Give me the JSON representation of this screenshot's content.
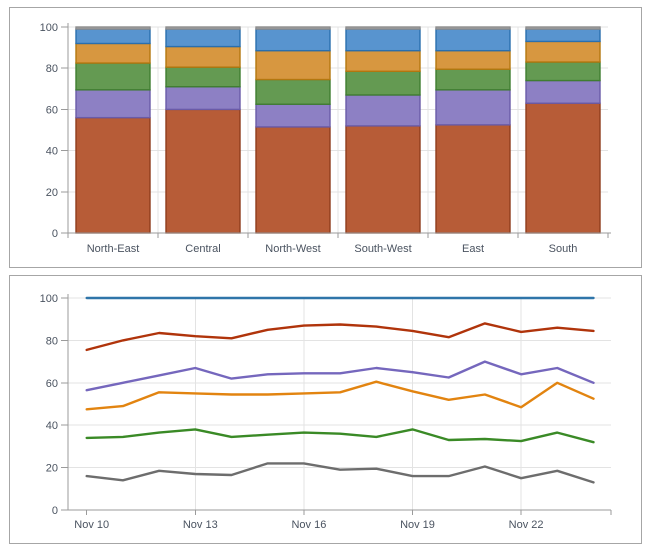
{
  "window": {
    "background": "#ffffff",
    "panel_border": "#a6a6a6"
  },
  "axis_style": {
    "label_color": "#4a5360",
    "axis_color": "#9b9b9b",
    "tick_color": "#9b9b9b",
    "grid_color": "#e3e3e3",
    "font_size": 11
  },
  "chart_data": [
    {
      "id": "regions-stacked-bar",
      "type": "bar",
      "stacked": true,
      "title": "",
      "xlabel": "",
      "ylabel": "",
      "categories": [
        "North-East",
        "Central",
        "North-West",
        "South-West",
        "East",
        "South"
      ],
      "ylim": [
        0,
        100
      ],
      "yticks": [
        0,
        20,
        40,
        60,
        80,
        100
      ],
      "grid": true,
      "legend": "none",
      "series": [
        {
          "name": "rust",
          "fill": "#b75c37",
          "stroke": "#8f3c1c",
          "values": [
            56,
            60,
            51.5,
            52,
            52.5,
            63
          ]
        },
        {
          "name": "purple",
          "fill": "#8d80c4",
          "stroke": "#6a5ba8",
          "values": [
            13.5,
            11,
            11,
            15,
            17,
            11
          ]
        },
        {
          "name": "green",
          "fill": "#649a52",
          "stroke": "#3f7d31",
          "values": [
            13,
            9.5,
            12,
            11.5,
            10,
            9
          ]
        },
        {
          "name": "orange",
          "fill": "#d79740",
          "stroke": "#b4770f",
          "values": [
            9.5,
            10,
            14,
            10,
            9,
            10
          ]
        },
        {
          "name": "blue",
          "fill": "#5894cf",
          "stroke": "#2a6fae",
          "values": [
            7,
            8.5,
            10.5,
            10.5,
            10.5,
            6
          ]
        },
        {
          "name": "gray",
          "fill": "#a8a8a8",
          "stroke": "#8c8c8c",
          "values": [
            1,
            1,
            1,
            1,
            1,
            1
          ]
        }
      ]
    },
    {
      "id": "daily-lines",
      "type": "line",
      "title": "",
      "xlabel": "",
      "ylabel": "",
      "n_points": 15,
      "x_tick_labels": [
        "Nov 10",
        "Nov 13",
        "Nov 16",
        "Nov 19",
        "Nov 22"
      ],
      "x_tick_positions": [
        0,
        3,
        6,
        9,
        12
      ],
      "ylim": [
        0,
        100
      ],
      "yticks": [
        0,
        20,
        40,
        60,
        80,
        100
      ],
      "grid": true,
      "legend": "none",
      "series": [
        {
          "name": "blue",
          "color": "#2f75a9",
          "values": [
            100,
            100,
            100,
            100,
            100,
            100,
            100,
            100,
            100,
            100,
            100,
            100,
            100,
            100,
            100
          ]
        },
        {
          "name": "red",
          "color": "#b0340b",
          "values": [
            75.5,
            80,
            83.5,
            82,
            81,
            85,
            87,
            87.5,
            86.5,
            84.5,
            81.5,
            88,
            84,
            86,
            84.5
          ]
        },
        {
          "name": "purple",
          "color": "#7567bd",
          "values": [
            56.5,
            60,
            63.5,
            67,
            62,
            64,
            64.5,
            64.5,
            67,
            65,
            62.5,
            70,
            64,
            67,
            60
          ]
        },
        {
          "name": "orange",
          "color": "#e28410",
          "values": [
            47.5,
            49,
            55.5,
            55,
            54.5,
            54.5,
            55,
            55.5,
            60.5,
            56,
            52,
            54.5,
            48.5,
            60,
            52.5
          ]
        },
        {
          "name": "green",
          "color": "#3a8a26",
          "values": [
            34,
            34.5,
            36.5,
            38,
            34.5,
            35.5,
            36.5,
            36,
            34.5,
            38,
            33,
            33.5,
            32.5,
            36.5,
            32
          ]
        },
        {
          "name": "gray",
          "color": "#6d6d6d",
          "values": [
            16,
            14,
            18.5,
            17,
            16.5,
            22,
            22,
            19,
            19.5,
            16,
            16,
            20.5,
            15,
            18.5,
            13
          ]
        }
      ]
    }
  ]
}
